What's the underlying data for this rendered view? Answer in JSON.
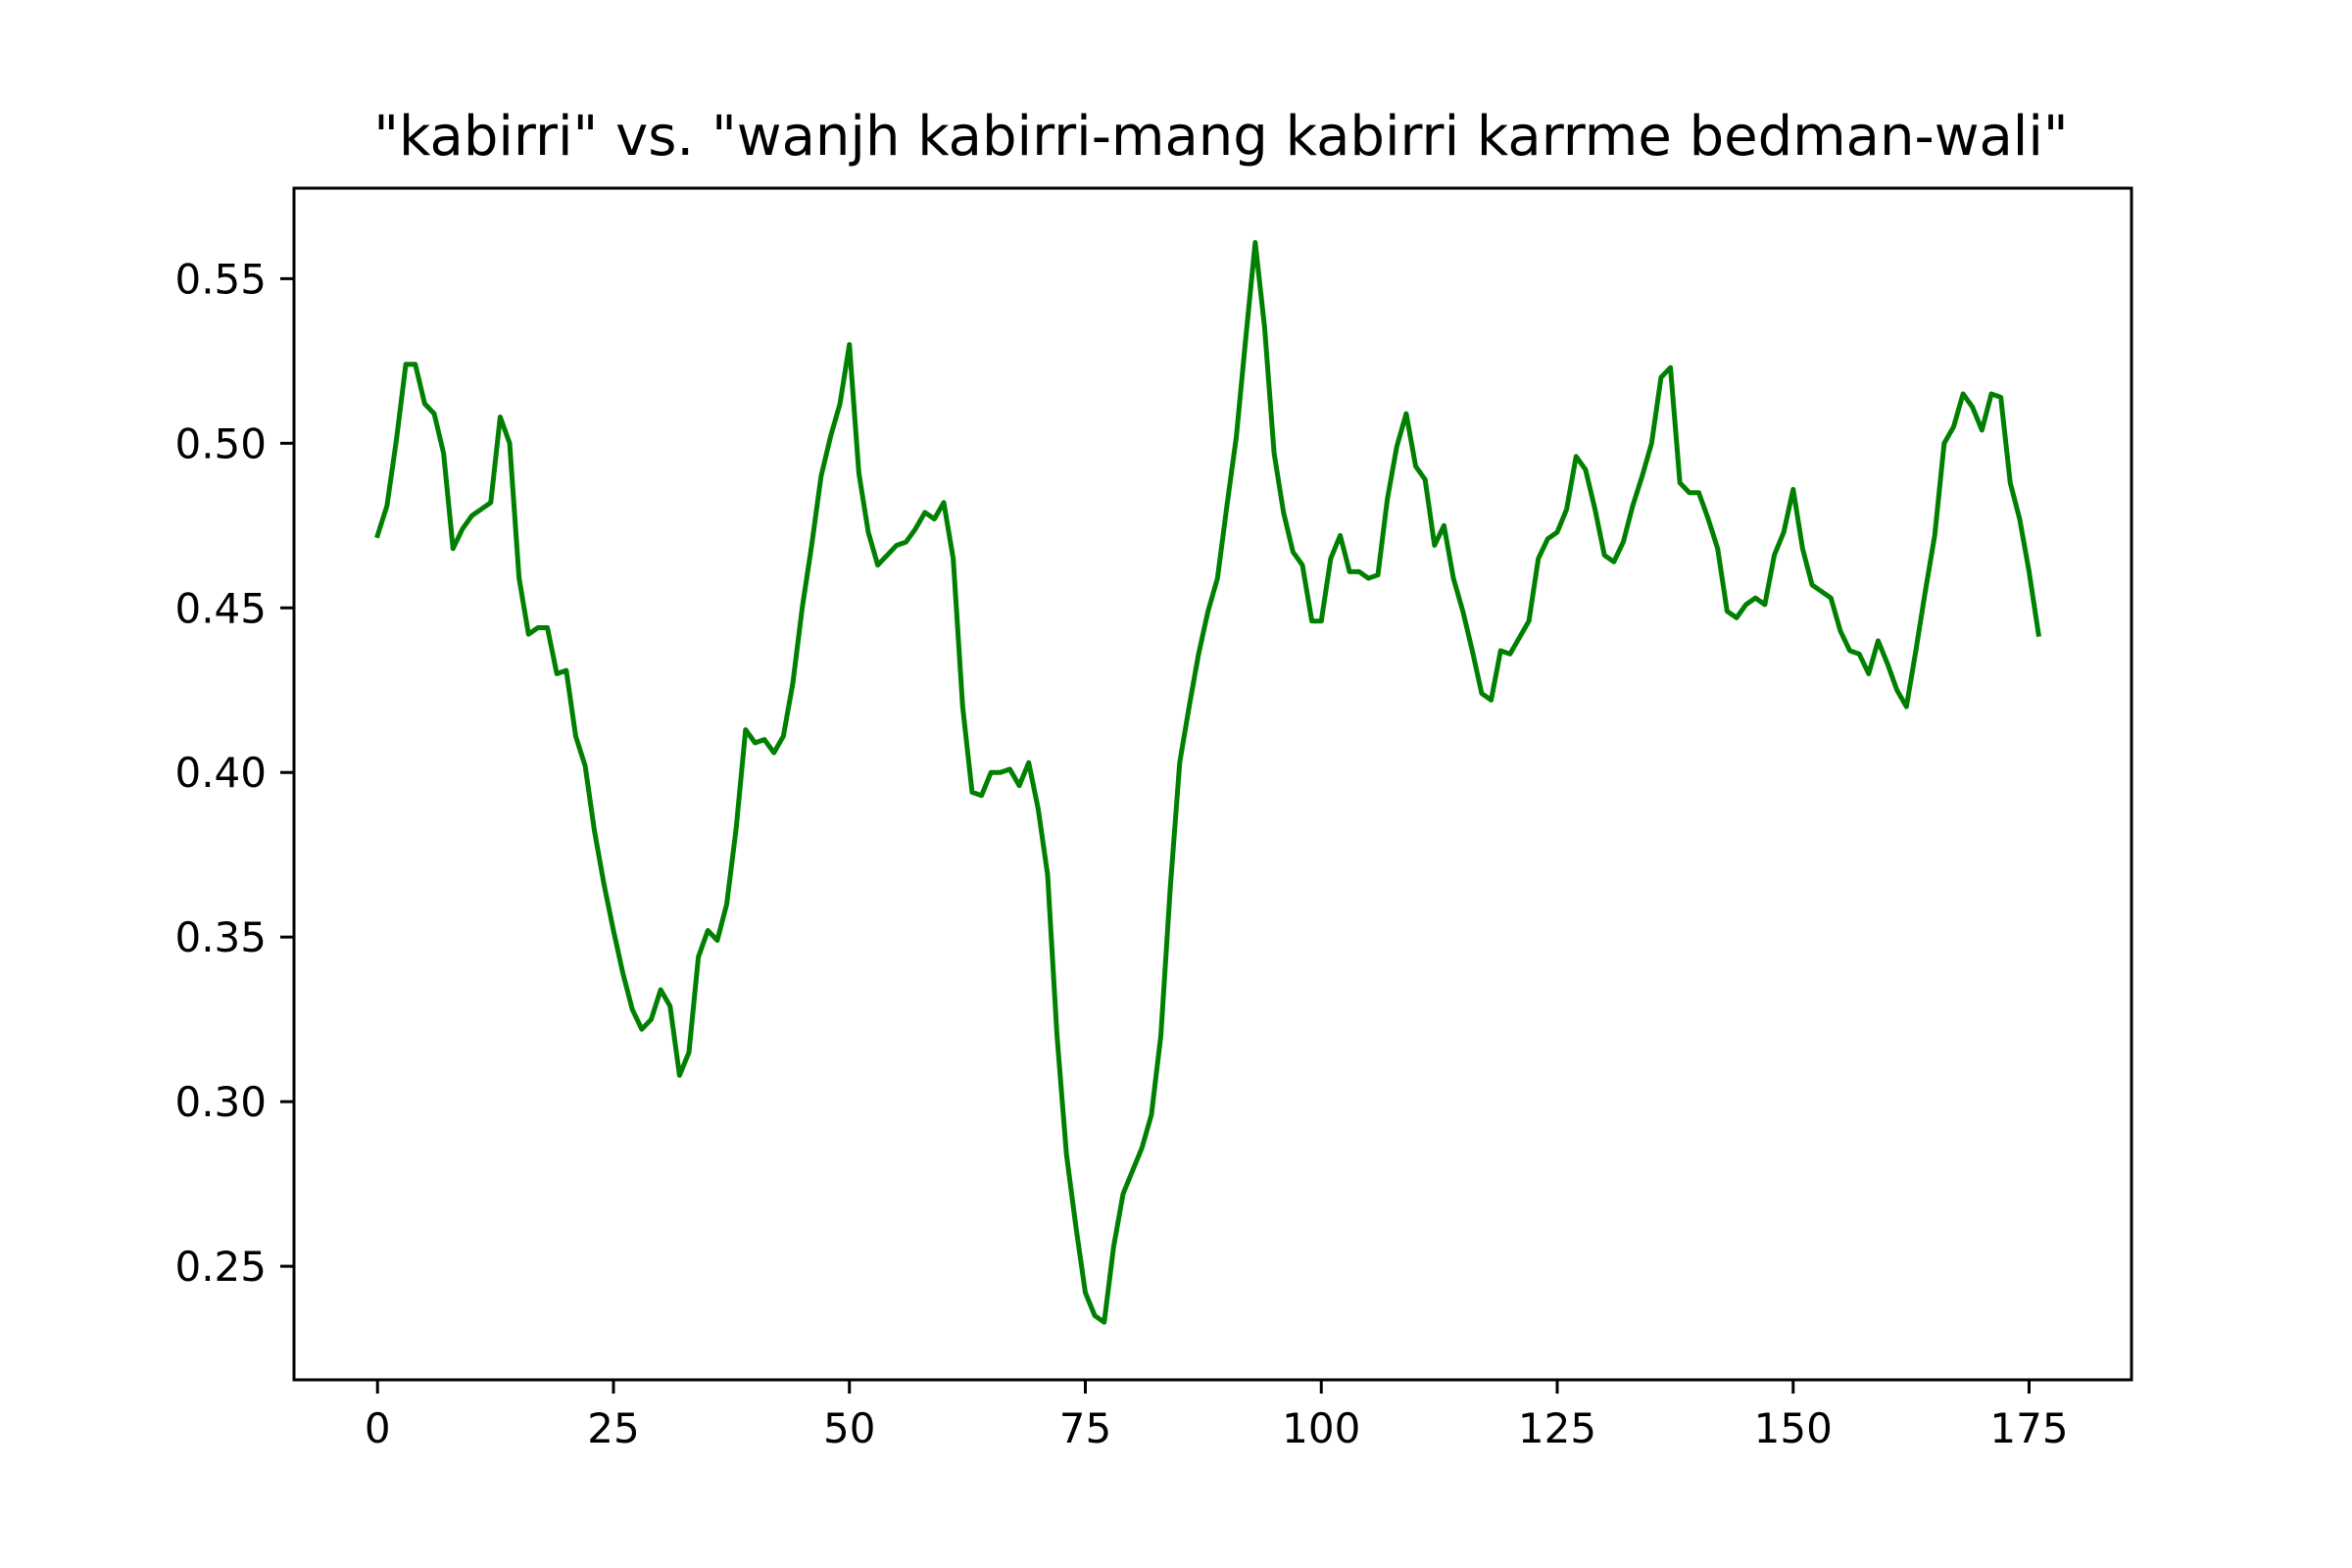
{
  "chart_data": {
    "type": "line",
    "title": "\"kabirri\" vs. \"wanjh kabirri-mang kabirri karrme bedman-wali\"",
    "xlabel": "",
    "ylabel": "",
    "xlim": [
      -8.85,
      185.85
    ],
    "ylim": [
      0.2155,
      0.5775
    ],
    "x_ticks": [
      0,
      25,
      50,
      75,
      100,
      125,
      150,
      175
    ],
    "x_tick_labels": [
      "0",
      "25",
      "50",
      "75",
      "100",
      "125",
      "150",
      "175"
    ],
    "y_ticks": [
      0.25,
      0.3,
      0.35,
      0.4,
      0.45,
      0.5,
      0.55
    ],
    "y_tick_labels": [
      "0.25",
      "0.30",
      "0.35",
      "0.40",
      "0.45",
      "0.50",
      "0.55"
    ],
    "grid": false,
    "line_color": "#008000",
    "series": [
      {
        "x_start": 0,
        "x_step": 1,
        "values": [
          0.472,
          0.481,
          0.501,
          0.524,
          0.524,
          0.512,
          0.509,
          0.497,
          0.468,
          0.474,
          0.478,
          0.48,
          0.482,
          0.508,
          0.5,
          0.459,
          0.442,
          0.444,
          0.444,
          0.43,
          0.431,
          0.411,
          0.402,
          0.382,
          0.366,
          0.352,
          0.339,
          0.328,
          0.322,
          0.325,
          0.334,
          0.329,
          0.308,
          0.315,
          0.344,
          0.352,
          0.349,
          0.36,
          0.383,
          0.413,
          0.409,
          0.41,
          0.406,
          0.411,
          0.427,
          0.45,
          0.469,
          0.49,
          0.502,
          0.512,
          0.53,
          0.491,
          0.473,
          0.463,
          0.466,
          0.469,
          0.47,
          0.474,
          0.479,
          0.477,
          0.482,
          0.465,
          0.42,
          0.394,
          0.393,
          0.4,
          0.4,
          0.401,
          0.396,
          0.403,
          0.389,
          0.369,
          0.32,
          0.284,
          0.262,
          0.242,
          0.235,
          0.233,
          0.256,
          0.272,
          0.279,
          0.286,
          0.296,
          0.32,
          0.365,
          0.403,
          0.42,
          0.436,
          0.449,
          0.459,
          0.481,
          0.502,
          0.532,
          0.561,
          0.535,
          0.497,
          0.479,
          0.467,
          0.463,
          0.446,
          0.446,
          0.465,
          0.472,
          0.461,
          0.461,
          0.459,
          0.46,
          0.483,
          0.499,
          0.509,
          0.493,
          0.489,
          0.469,
          0.475,
          0.459,
          0.449,
          0.437,
          0.424,
          0.422,
          0.437,
          0.436,
          0.441,
          0.446,
          0.465,
          0.471,
          0.473,
          0.48,
          0.496,
          0.492,
          0.48,
          0.466,
          0.464,
          0.47,
          0.481,
          0.49,
          0.5,
          0.52,
          0.523,
          0.488,
          0.485,
          0.485,
          0.477,
          0.468,
          0.449,
          0.447,
          0.451,
          0.453,
          0.451,
          0.466,
          0.473,
          0.486,
          0.468,
          0.457,
          0.455,
          0.453,
          0.443,
          0.437,
          0.436,
          0.43,
          0.44,
          0.433,
          0.425,
          0.42,
          0.437,
          0.455,
          0.472,
          0.5,
          0.505,
          0.515,
          0.511,
          0.504,
          0.515,
          0.514,
          0.488,
          0.477,
          0.461,
          0.442
        ]
      }
    ]
  }
}
